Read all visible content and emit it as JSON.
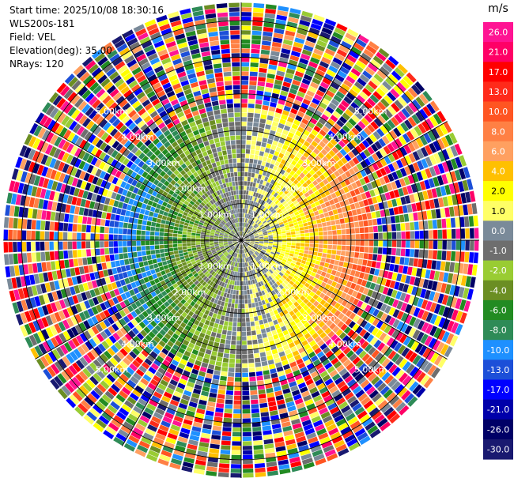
{
  "info": {
    "start_time": "Start time: 2025/10/08 18:30:16",
    "instrument": "WLS200s-181",
    "field": "Field: VEL",
    "elevation": "Elevation(deg): 35.00",
    "nrays": "NRays: 120"
  },
  "chart_data": {
    "type": "heatmap",
    "projection": "polar",
    "field": "VEL",
    "units": "m/s",
    "nrays": 120,
    "elevation_deg": 35.0,
    "max_range_km": 6.5,
    "range_rings_km": [
      1,
      2,
      3,
      4,
      5,
      6
    ],
    "ring_labels": [
      "1.00km",
      "2.00km",
      "3.00km",
      "4.00km",
      "5.00km"
    ],
    "ring_label_directions": [
      "upper-left",
      "upper-right",
      "lower-left",
      "lower-right"
    ],
    "spokes_deg": [
      0,
      30,
      60,
      90,
      120,
      150,
      180,
      210,
      240,
      270,
      300,
      330
    ],
    "colorbar": {
      "ticks": [
        "26.0",
        "21.0",
        "17.0",
        "13.0",
        "10.0",
        "8.0",
        "6.0",
        "4.0",
        "2.0",
        "1.0",
        "0.0",
        "-1.0",
        "-2.0",
        "-4.0",
        "-6.0",
        "-8.0",
        "-10.0",
        "-13.0",
        "-17.0",
        "-21.0",
        "-26.0",
        "-30.0"
      ],
      "colors": [
        "#ff1493",
        "#ff0066",
        "#ff0000",
        "#ff2a1a",
        "#ff5522",
        "#ff8044",
        "#ffa060",
        "#ffc000",
        "#ffff00",
        "#ffff66",
        "#7a8a99",
        "#6e6e6e",
        "#99cc33",
        "#6b8e23",
        "#228b22",
        "#2e8b57",
        "#1e90ff",
        "#1c4fd8",
        "#0000ff",
        "#0000aa",
        "#000066",
        "#191970"
      ],
      "dark_label_indices": [
        8,
        9
      ]
    },
    "pattern": {
      "description": "Low-range velocities near zero (grey/yellow/green), receding (positive, orange-red) to the east, approaching (negative, green-blue) to the west; outer ranges noisy across full scale",
      "positive_azimuth_deg": 90,
      "clean_range_km": 3.6
    }
  }
}
